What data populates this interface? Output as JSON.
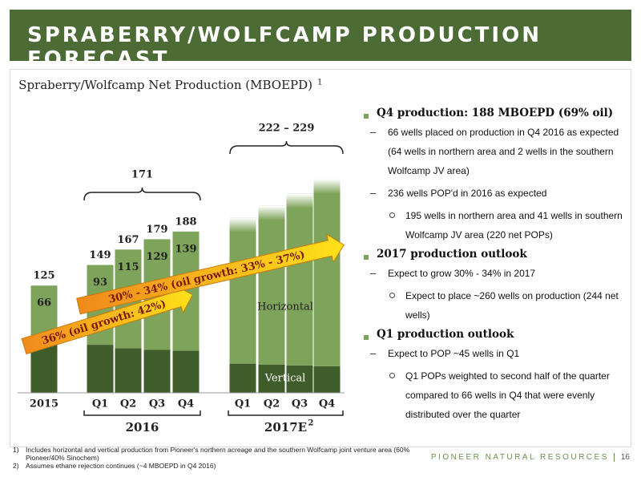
{
  "header": {
    "title": "SPRABERRY/WOLFCAMP PRODUCTION FORECAST"
  },
  "chart_data": {
    "type": "bar",
    "stacked": true,
    "title": "Spraberry/Wolfcamp Net Production (MBOEPD)",
    "title_note": "1",
    "categories": [
      "2015",
      "Q1",
      "Q2",
      "Q3",
      "Q4",
      "Q1",
      "Q2",
      "Q3",
      "Q4"
    ],
    "groups": [
      {
        "label": "2016"
      },
      {
        "label": "2017E",
        "note": "2"
      }
    ],
    "series": [
      {
        "name": "Vertical",
        "color": "#3f5c2b",
        "values": [
          59,
          56,
          52,
          50,
          49,
          34,
          33,
          32,
          31
        ]
      },
      {
        "name": "Horizontal",
        "color": "#7ea35a",
        "values": [
          66,
          93,
          115,
          129,
          139,
          170,
          185,
          200,
          218
        ]
      }
    ],
    "totals": [
      125,
      149,
      167,
      179,
      188,
      null,
      null,
      null,
      null
    ],
    "brackets": [
      {
        "label": "171"
      },
      {
        "label": "222 – 229"
      }
    ],
    "annotations": [
      "36% (oil growth: 42%)",
      "30% - 34% (oil growth: 33% - 37%)"
    ],
    "ylim": [
      0,
      285
    ]
  },
  "bullets": [
    {
      "level": 1,
      "text": "Q4 production: 188 MBOEPD (69% oil)"
    },
    {
      "level": 2,
      "text": "66 wells placed on production in Q4 2016 as expected (64 wells in northern area and 2 wells in the southern Wolfcamp JV area)"
    },
    {
      "level": 2,
      "text": "236 wells POP'd in 2016 as expected"
    },
    {
      "level": 3,
      "text": "195 wells in northern area and 41 wells in southern Wolfcamp JV area (220 net POPs)"
    },
    {
      "level": 1,
      "text": "2017 production outlook"
    },
    {
      "level": 2,
      "text": "Expect to grow 30% - 34% in 2017"
    },
    {
      "level": 3,
      "text": "Expect to place ~260 wells on production (244 net wells)"
    },
    {
      "level": 1,
      "text": "Q1 production outlook"
    },
    {
      "level": 2,
      "text": "Expect to POP ~45 wells in Q1"
    },
    {
      "level": 3,
      "text": "Q1 POPs weighted to second half of the quarter compared to 66 wells in Q4 that were evenly distributed over the quarter"
    }
  ],
  "footnotes": [
    {
      "marker": "1)",
      "text": "Includes horizontal and vertical production from Pioneer's northern acreage and the southern Wolfcamp joint venture area (60% Pioneer/40% Sinochem)"
    },
    {
      "marker": "2)",
      "text": "Assumes ethane rejection continues (~4 MBOEPD in Q4 2016)"
    }
  ],
  "footer": {
    "company": "PIONEER NATURAL RESOURCES",
    "page": "16"
  }
}
